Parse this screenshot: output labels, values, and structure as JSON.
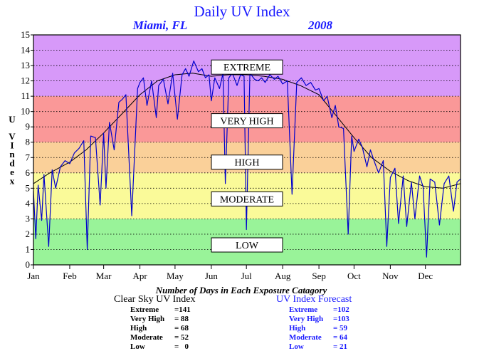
{
  "chart_data": {
    "type": "line",
    "title": "Daily UV Index",
    "subtitle_location": "Miami, FL",
    "subtitle_year": "2008",
    "ylabel": "UV Index",
    "xlabel": "",
    "ylim": [
      0,
      15
    ],
    "xlim_days": [
      1,
      366
    ],
    "grid": true,
    "y_ticks": [
      "0",
      "1",
      "2",
      "3",
      "4",
      "5",
      "6",
      "7",
      "8",
      "9",
      "10",
      "11",
      "12",
      "13",
      "14",
      "15"
    ],
    "x_ticks": [
      {
        "label": "Jan",
        "day": 1
      },
      {
        "label": "Feb",
        "day": 32
      },
      {
        "label": "Mar",
        "day": 61
      },
      {
        "label": "Apr",
        "day": 92
      },
      {
        "label": "May",
        "day": 122
      },
      {
        "label": "Jun",
        "day": 153
      },
      {
        "label": "Jul",
        "day": 183
      },
      {
        "label": "Aug",
        "day": 214
      },
      {
        "label": "Sep",
        "day": 245
      },
      {
        "label": "Oct",
        "day": 275
      },
      {
        "label": "Nov",
        "day": 306
      },
      {
        "label": "Dec",
        "day": 336
      }
    ],
    "bands": [
      {
        "name": "LOW",
        "from": 0,
        "to": 3,
        "color": "#99f399"
      },
      {
        "name": "MODERATE",
        "from": 3,
        "to": 6,
        "color": "#fafa99"
      },
      {
        "name": "HIGH",
        "from": 6,
        "to": 8,
        "color": "#fad099"
      },
      {
        "name": "VERY HIGH",
        "from": 8,
        "to": 11,
        "color": "#fa9898"
      },
      {
        "name": "EXTREME",
        "from": 11,
        "to": 15,
        "color": "#d799f9"
      }
    ],
    "band_label_values": {
      "EXTREME": 12.9,
      "VERY HIGH": 9.4,
      "HIGH": 6.7,
      "MODERATE": 4.3,
      "LOW": 1.3
    },
    "series": [
      {
        "name": "Clear Sky UV Index",
        "color": "#000000",
        "days": [
          1,
          15,
          32,
          46,
          61,
          76,
          92,
          107,
          122,
          137,
          153,
          168,
          183,
          198,
          214,
          229,
          245,
          260,
          275,
          290,
          306,
          321,
          336,
          351,
          366
        ],
        "values": [
          5.3,
          6.0,
          6.7,
          7.5,
          8.6,
          9.8,
          11.1,
          12.0,
          12.4,
          12.5,
          12.3,
          12.4,
          12.4,
          12.3,
          12.1,
          11.7,
          11.1,
          9.7,
          8.3,
          7.0,
          6.1,
          5.5,
          5.1,
          5.0,
          5.3
        ]
      },
      {
        "name": "UV Index Forecast",
        "color": "#0000cc",
        "days": [
          1,
          3,
          5,
          8,
          10,
          14,
          17,
          20,
          24,
          28,
          32,
          36,
          40,
          44,
          47,
          50,
          54,
          58,
          61,
          63,
          66,
          70,
          74,
          77,
          80,
          85,
          90,
          92,
          95,
          98,
          102,
          106,
          108,
          112,
          116,
          120,
          124,
          128,
          131,
          134,
          138,
          142,
          145,
          148,
          151,
          153,
          156,
          160,
          163,
          165,
          168,
          171,
          175,
          178,
          181,
          183,
          186,
          190,
          193,
          196,
          199,
          203,
          207,
          210,
          214,
          218,
          222,
          226,
          230,
          234,
          238,
          242,
          245,
          249,
          252,
          256,
          259,
          262,
          266,
          270,
          273,
          275,
          279,
          282,
          286,
          289,
          293,
          296,
          300,
          303,
          306,
          310,
          313,
          317,
          320,
          324,
          327,
          331,
          334,
          337,
          340,
          344,
          348,
          352,
          356,
          360,
          363,
          366
        ],
        "values": [
          4.8,
          1.7,
          5.2,
          2.9,
          5.9,
          1.2,
          6.2,
          5.0,
          6.4,
          6.8,
          6.6,
          7.3,
          7.6,
          8.1,
          1.0,
          8.4,
          8.3,
          3.9,
          8.6,
          5.0,
          9.3,
          7.5,
          10.6,
          10.8,
          11.1,
          3.2,
          11.5,
          11.9,
          12.2,
          10.4,
          12.0,
          9.6,
          11.7,
          12.1,
          10.5,
          12.5,
          9.5,
          12.4,
          12.8,
          12.3,
          13.3,
          12.6,
          12.8,
          12.2,
          12.4,
          10.7,
          12.2,
          11.5,
          12.5,
          5.3,
          12.2,
          12.5,
          11.7,
          12.4,
          12.3,
          2.3,
          12.5,
          12.1,
          12.0,
          12.2,
          11.9,
          12.4,
          12.1,
          12.3,
          11.8,
          12.0,
          4.6,
          11.9,
          12.2,
          11.7,
          11.9,
          11.4,
          11.5,
          10.7,
          11.0,
          9.6,
          10.4,
          9.0,
          8.9,
          2.0,
          8.4,
          7.4,
          8.2,
          7.7,
          6.4,
          7.5,
          6.6,
          6.0,
          6.8,
          1.2,
          5.7,
          6.3,
          2.7,
          5.8,
          2.5,
          5.4,
          3.0,
          5.8,
          5.1,
          0.5,
          5.6,
          5.4,
          2.6,
          5.3,
          5.8,
          3.5,
          5.4,
          5.6
        ]
      }
    ],
    "footer_title": "Number of Days in Each Exposure Catagory"
  },
  "stats": {
    "clear_sky": {
      "title": "Clear Sky UV Index",
      "rows": [
        {
          "label": "Extreme",
          "value": "=141"
        },
        {
          "label": "Very High",
          "value": "= 88"
        },
        {
          "label": "High",
          "value": "= 68"
        },
        {
          "label": "Moderate",
          "value": "= 52"
        },
        {
          "label": "Low",
          "value": "=   0"
        }
      ]
    },
    "forecast": {
      "title": "UV Index Forecast",
      "rows": [
        {
          "label": "Extreme",
          "value": "=102"
        },
        {
          "label": "Very High",
          "value": "=103"
        },
        {
          "label": "High",
          "value": "= 59"
        },
        {
          "label": "Moderate",
          "value": "= 64"
        },
        {
          "label": "Low",
          "value": "= 21"
        }
      ]
    }
  }
}
